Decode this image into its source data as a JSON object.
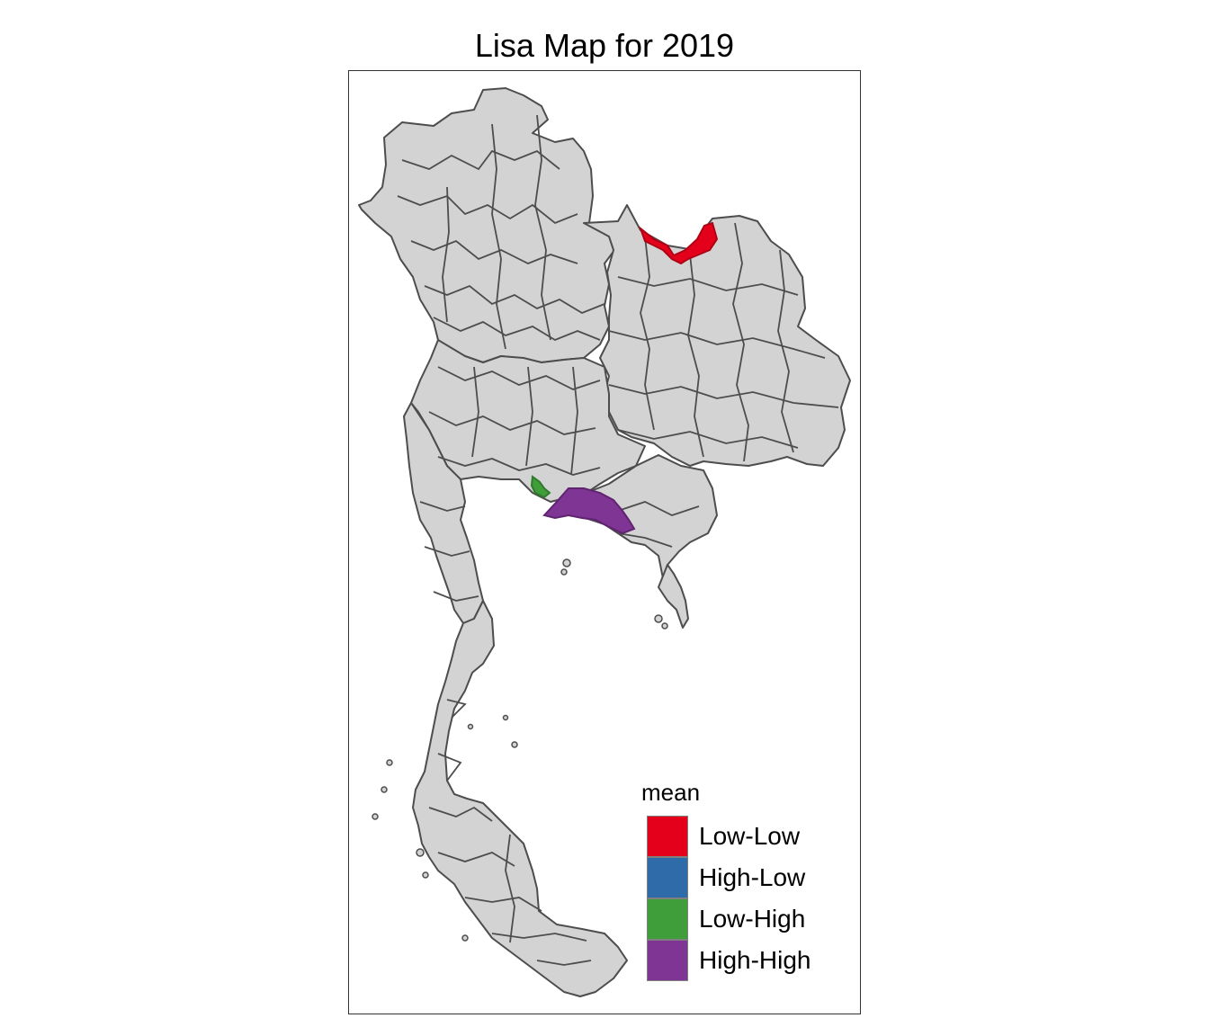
{
  "map": {
    "title": "Lisa Map for 2019",
    "base_fill": "#d3d3d3",
    "border_color": "#4d4d4d"
  },
  "legend": {
    "title": "mean",
    "items": [
      {
        "label": "Low-Low",
        "color": "#e4001b"
      },
      {
        "label": "High-Low",
        "color": "#2f6ba8"
      },
      {
        "label": "Low-High",
        "color": "#3f9e3a"
      },
      {
        "label": "High-High",
        "color": "#7f3593"
      }
    ]
  },
  "highlighted_regions": [
    {
      "category": "Low-Low",
      "color": "#e4001b"
    },
    {
      "category": "Low-High",
      "color": "#3f9e3a"
    },
    {
      "category": "High-High",
      "color": "#7f3593"
    }
  ]
}
